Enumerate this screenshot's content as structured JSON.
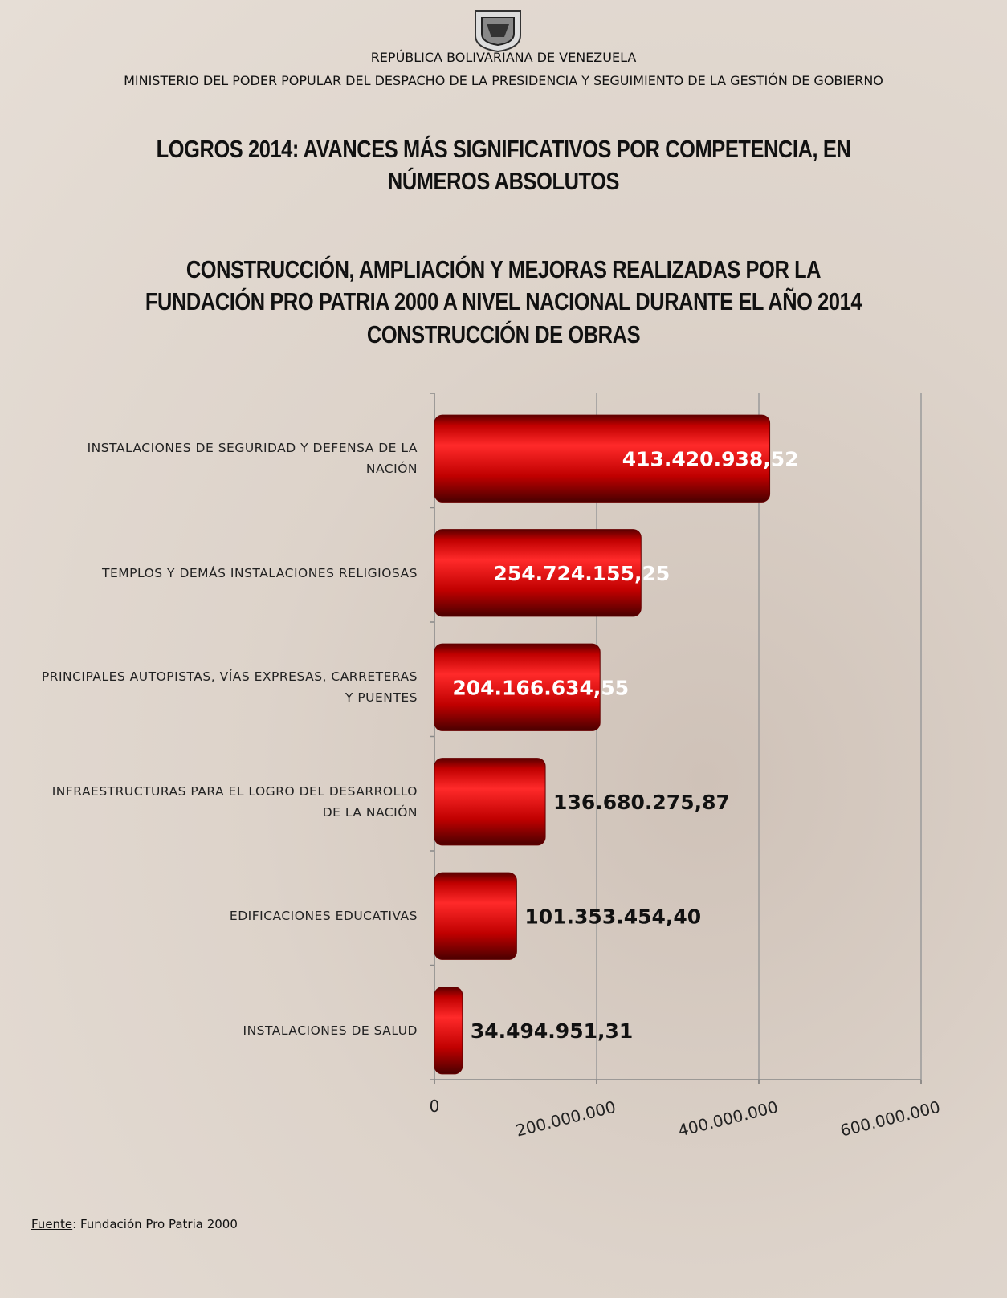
{
  "header": {
    "republic": "REPÚBLICA BOLIVARIANA DE VENEZUELA",
    "ministry": "MINISTERIO DEL PODER POPULAR DEL DESPACHO DE LA PRESIDENCIA Y SEGUIMIENTO DE LA GESTIÓN DE GOBIERNO"
  },
  "source": {
    "label": "Fuente",
    "text": ": Fundación Pro Patria 2000"
  },
  "chart_data": {
    "type": "hbar",
    "title": "LOGROS 2014: AVANCES MÁS SIGNIFICATIVOS POR COMPETENCIA, EN NÚMEROS ABSOLUTOS",
    "subtitle": "CONSTRUCCIÓN, AMPLIACIÓN Y MEJORAS REALIZADAS POR LA FUNDACIÓN PRO PATRIA 2000 A NIVEL NACIONAL DURANTE EL AÑO 2014",
    "subtitle2": "CONSTRUCCIÓN DE OBRAS",
    "categories": [
      "INSTALACIONES DE SEGURIDAD Y DEFENSA DE LA NACIÓN",
      "TEMPLOS Y DEMÁS INSTALACIONES RELIGIOSAS",
      "PRINCIPALES AUTOPISTAS, VÍAS EXPRESAS, CARRETERAS Y PUENTES",
      "INFRAESTRUCTURAS PARA EL LOGRO DEL DESARROLLO DE LA NACIÓN",
      "EDIFICACIONES EDUCATIVAS",
      "INSTALACIONES DE SALUD"
    ],
    "values": [
      413420938.52,
      254724155.25,
      204166634.55,
      136680275.87,
      101353454.4,
      34494951.31
    ],
    "value_labels": [
      "413.420.938,52",
      "254.724.155,25",
      "204.166.634,55",
      "136.680.275,87",
      "101.353.454,40",
      "34.494.951,31"
    ],
    "color": "#d00000",
    "xlim": [
      0,
      600000000
    ],
    "xticks": [
      0,
      {
        "value": 200000000,
        "label": "200.000.000"
      },
      {
        "value": 400000000,
        "label": "400.000.000"
      },
      {
        "value": 600000000,
        "label": "600.000.000"
      }
    ],
    "grid": true
  }
}
